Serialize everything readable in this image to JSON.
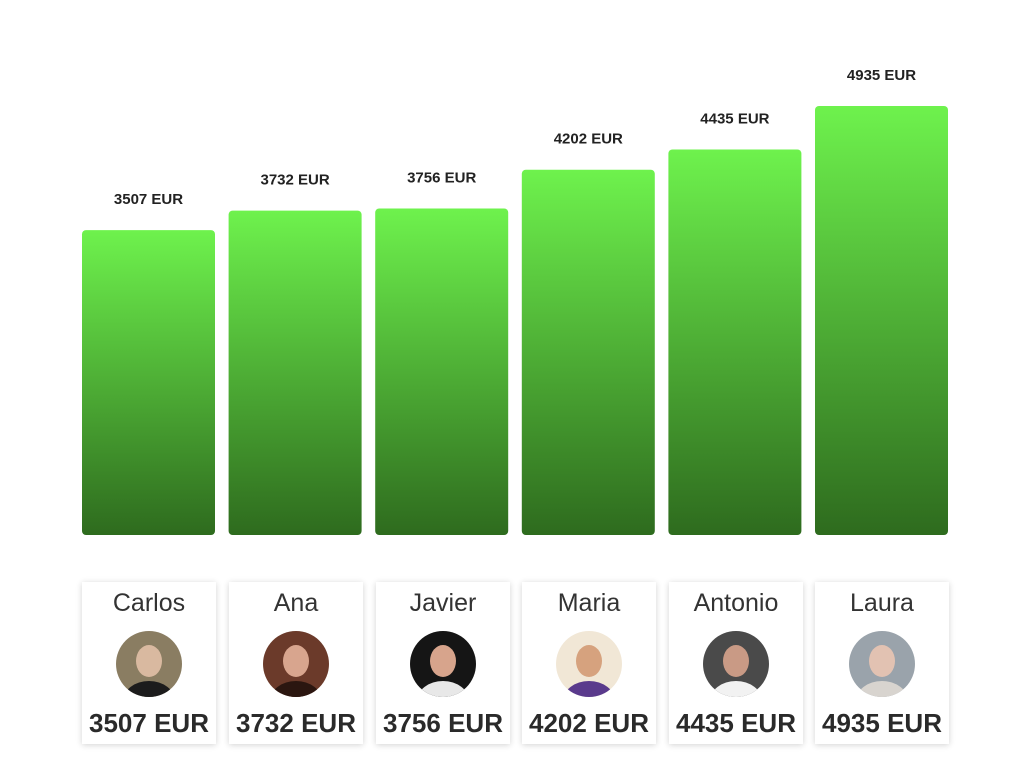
{
  "chart_data": {
    "type": "bar",
    "categories": [
      "Carlos",
      "Ana",
      "Javier",
      "Maria",
      "Antonio",
      "Laura"
    ],
    "values": [
      3507,
      3732,
      3756,
      4202,
      4435,
      4935
    ],
    "unit": "EUR",
    "bar_labels": [
      "3507 EUR",
      "3732 EUR",
      "3756 EUR",
      "4202 EUR",
      "4435 EUR",
      "4935 EUR"
    ],
    "ylim": [
      0,
      4935
    ],
    "grid": false,
    "legend": "none",
    "bar_gradient": [
      "#6ef24d",
      "#2e6b1e"
    ]
  },
  "cards": [
    {
      "name": "Carlos",
      "value_label": "3507 EUR",
      "avatar": "carlos-portrait",
      "avatar_colors": [
        "#8a7d62",
        "#d9b9a0",
        "#1c1c1c"
      ]
    },
    {
      "name": "Ana",
      "value_label": "3732 EUR",
      "avatar": "ana-portrait",
      "avatar_colors": [
        "#6b3a2a",
        "#d8a58e",
        "#2b1610"
      ]
    },
    {
      "name": "Javier",
      "value_label": "3756 EUR",
      "avatar": "javier-portrait",
      "avatar_colors": [
        "#151515",
        "#d7a48c",
        "#e8e8e8"
      ]
    },
    {
      "name": "Maria",
      "value_label": "4202 EUR",
      "avatar": "maria-portrait",
      "avatar_colors": [
        "#f1e7d6",
        "#d6a27e",
        "#5a3a8c"
      ]
    },
    {
      "name": "Antonio",
      "value_label": "4435 EUR",
      "avatar": "antonio-portrait",
      "avatar_colors": [
        "#4a4a4a",
        "#c99a85",
        "#f2f2f2"
      ]
    },
    {
      "name": "Laura",
      "value_label": "4935 EUR",
      "avatar": "laura-portrait",
      "avatar_colors": [
        "#9aa3ab",
        "#e2c2b2",
        "#d8d4cf"
      ]
    }
  ]
}
